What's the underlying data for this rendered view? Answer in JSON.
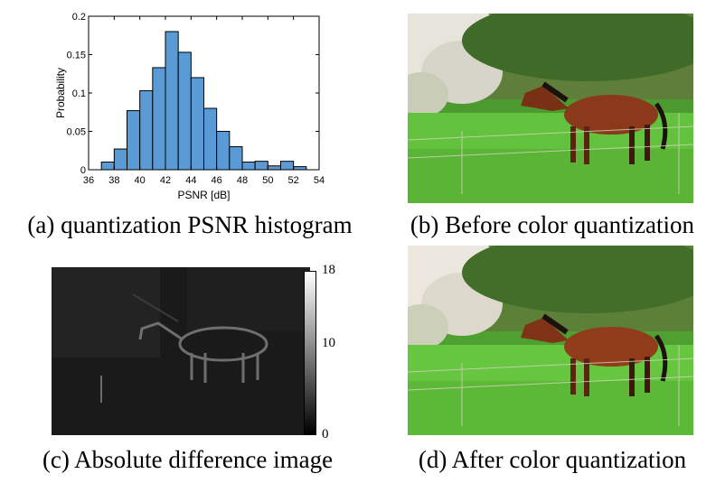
{
  "figure": {
    "captions": {
      "a": "(a) quantization PSNR histogram",
      "b": "(b) Before color quantization",
      "c": "(c) Absolute difference image",
      "d": "(d) After color quantization"
    }
  },
  "chart_data": {
    "type": "bar",
    "title": "",
    "xlabel": "PSNR [dB]",
    "ylabel": "Probability",
    "xlim": [
      36,
      54
    ],
    "ylim": [
      0,
      0.2
    ],
    "xticks": [
      36,
      38,
      40,
      42,
      44,
      46,
      48,
      50,
      52,
      54
    ],
    "yticks": [
      0,
      0.05,
      0.1,
      0.15,
      0.2
    ],
    "ytick_labels": [
      "0",
      "0.05",
      "0.1",
      "0.15",
      "0.2"
    ],
    "bin_width": 1,
    "bins": [
      {
        "start": 37,
        "value": 0.01
      },
      {
        "start": 38,
        "value": 0.027
      },
      {
        "start": 39,
        "value": 0.077
      },
      {
        "start": 40,
        "value": 0.103
      },
      {
        "start": 41,
        "value": 0.133
      },
      {
        "start": 42,
        "value": 0.18
      },
      {
        "start": 43,
        "value": 0.153
      },
      {
        "start": 44,
        "value": 0.12
      },
      {
        "start": 45,
        "value": 0.08
      },
      {
        "start": 46,
        "value": 0.05
      },
      {
        "start": 47,
        "value": 0.03
      },
      {
        "start": 48,
        "value": 0.01
      },
      {
        "start": 49,
        "value": 0.011
      },
      {
        "start": 50,
        "value": 0.005
      },
      {
        "start": 51,
        "value": 0.011
      },
      {
        "start": 52,
        "value": 0.004
      }
    ],
    "bar_color": "#5b9bd5",
    "grid": false
  },
  "colorbar": {
    "ticks": [
      {
        "value": 18,
        "label": "18"
      },
      {
        "value": 10,
        "label": "10"
      },
      {
        "value": 0,
        "label": "0"
      }
    ],
    "min": 0,
    "max": 18
  },
  "photos": {
    "sky_color": "#dfe6c8",
    "grass_color": "#5fbf3a",
    "horse_color": "#8a3a1a"
  }
}
